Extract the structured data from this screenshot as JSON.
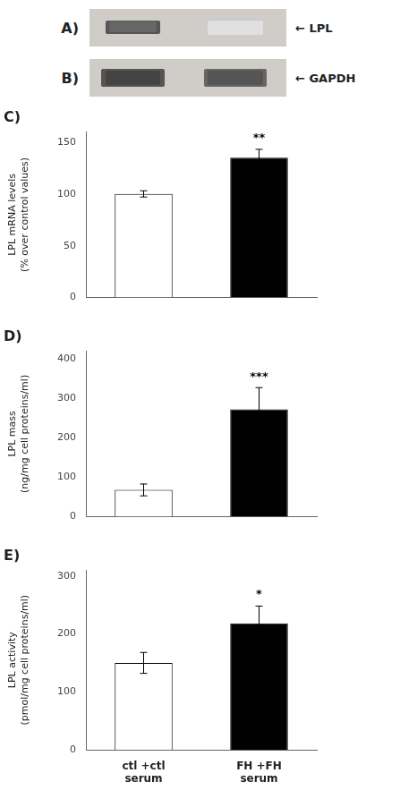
{
  "chart_data": [
    {
      "type": "gel",
      "title": "A)",
      "annotations": [
        {
          "text": "← LPL"
        }
      ]
    },
    {
      "type": "gel",
      "title": "B)",
      "annotations": [
        {
          "text": "← GAPDH"
        }
      ]
    },
    {
      "type": "bar",
      "title": "C)",
      "y_label": "LPL mRNA levels\n(% over control values)",
      "categories": [
        null,
        null
      ],
      "values": [
        100,
        135
      ],
      "errors": [
        3,
        8
      ],
      "colors": [
        "white",
        "black"
      ],
      "ylim": [
        0,
        160
      ],
      "yticks": [
        0,
        50,
        100,
        150
      ],
      "grid": false,
      "annotations": [
        {
          "text": "**",
          "index": 1
        }
      ]
    },
    {
      "type": "bar",
      "title": "D)",
      "y_label": "LPL mass\n(ng/mg cell proteins/ml)",
      "categories": [
        null,
        null
      ],
      "values": [
        68,
        272
      ],
      "errors": [
        15,
        55
      ],
      "colors": [
        "white",
        "black"
      ],
      "ylim": [
        0,
        420
      ],
      "yticks": [
        0,
        100,
        200,
        300,
        400
      ],
      "grid": false,
      "annotations": [
        {
          "text": "***",
          "index": 1
        }
      ]
    },
    {
      "type": "bar",
      "title": "E)",
      "y_label": "LPL activity\n(pmol/mg cell proteins/ml)",
      "categories": [
        "ctl +ctl\nserum",
        "FH +FH\nserum"
      ],
      "values": [
        150,
        218
      ],
      "errors": [
        18,
        30
      ],
      "colors": [
        "white",
        "black"
      ],
      "ylim": [
        0,
        310
      ],
      "yticks": [
        0,
        100,
        200,
        300
      ],
      "grid": false,
      "annotations": [
        {
          "text": "*",
          "index": 1
        }
      ]
    }
  ]
}
